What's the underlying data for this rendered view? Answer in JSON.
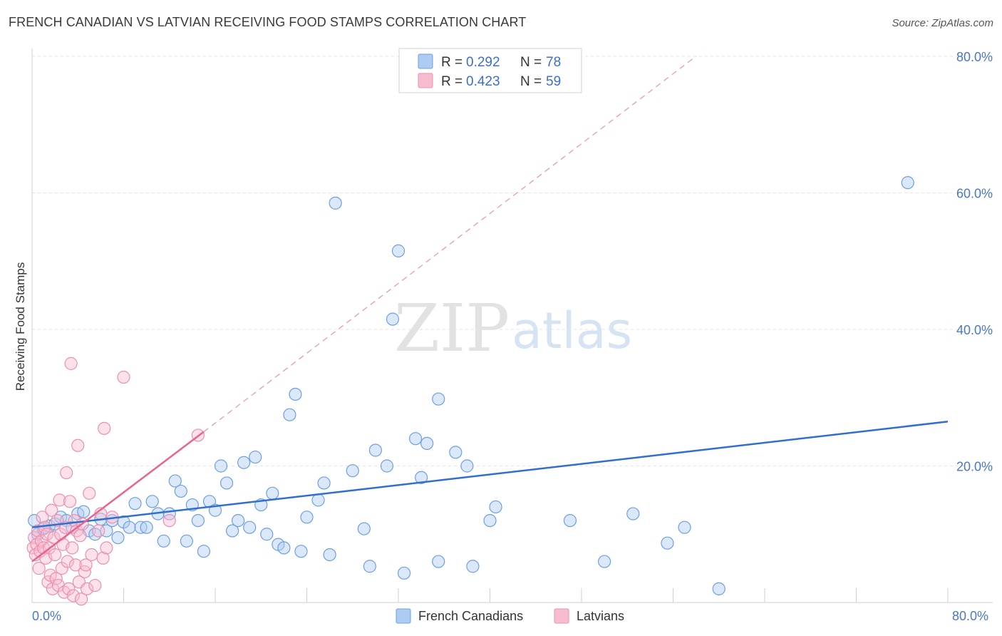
{
  "title": "FRENCH CANADIAN VS LATVIAN RECEIVING FOOD STAMPS CORRELATION CHART",
  "source": "Source: ZipAtlas.com",
  "watermark": {
    "zip": "ZIP",
    "atlas": "atlas"
  },
  "legend": {
    "r_label": "R =",
    "n_label": "N =",
    "entries": [
      {
        "r": "0.292",
        "n": "78"
      },
      {
        "r": "0.423",
        "n": "59"
      }
    ]
  },
  "colors": {
    "french_fill": "#aecbf2",
    "french_stroke": "#6f9fe0",
    "french_line": "#2f6fd0",
    "latvian_fill": "#f7bcd0",
    "latvian_stroke": "#ec8fb0",
    "latvian_line": "#e8648e",
    "tick_text": "#4a78c8",
    "grid": "#e3e3e3"
  },
  "chart_data": {
    "type": "scatter",
    "ylabel": "Receiving Food Stamps",
    "xlim": [
      0,
      80
    ],
    "ylim": [
      0,
      80
    ],
    "x_tick_labels": [
      "0.0%",
      "80.0%"
    ],
    "y_ticks": [
      20,
      40,
      60,
      80
    ],
    "y_tick_labels": [
      "20.0%",
      "40.0%",
      "60.0%",
      "80.0%"
    ],
    "series": [
      {
        "name": "French Canadians",
        "trend": {
          "x": [
            0,
            80
          ],
          "y": [
            11.0,
            26.5
          ]
        },
        "points": [
          [
            0.2,
            12.0
          ],
          [
            0.5,
            10.0
          ],
          [
            1.0,
            10.8
          ],
          [
            1.5,
            11.2
          ],
          [
            2.0,
            11.5
          ],
          [
            2.5,
            12.5
          ],
          [
            3.0,
            12.0
          ],
          [
            3.5,
            11.0
          ],
          [
            4.0,
            13.0
          ],
          [
            4.5,
            13.3
          ],
          [
            5.0,
            10.5
          ],
          [
            5.5,
            10.0
          ],
          [
            6.0,
            12.2
          ],
          [
            6.5,
            10.5
          ],
          [
            7.0,
            12.0
          ],
          [
            7.5,
            9.5
          ],
          [
            8.0,
            11.8
          ],
          [
            8.5,
            11.0
          ],
          [
            9.0,
            14.5
          ],
          [
            9.5,
            11.0
          ],
          [
            10.0,
            11.0
          ],
          [
            10.5,
            14.8
          ],
          [
            11.0,
            13.0
          ],
          [
            11.5,
            9.0
          ],
          [
            12.0,
            13.0
          ],
          [
            12.5,
            17.8
          ],
          [
            13.0,
            16.3
          ],
          [
            13.5,
            9.0
          ],
          [
            14.0,
            14.3
          ],
          [
            14.5,
            12.0
          ],
          [
            15.0,
            7.5
          ],
          [
            15.5,
            14.8
          ],
          [
            16.0,
            13.5
          ],
          [
            16.5,
            20.0
          ],
          [
            17.0,
            17.5
          ],
          [
            17.5,
            10.5
          ],
          [
            18.0,
            12.0
          ],
          [
            18.5,
            20.5
          ],
          [
            19.0,
            11.0
          ],
          [
            19.5,
            21.3
          ],
          [
            20.0,
            14.3
          ],
          [
            20.5,
            10.0
          ],
          [
            21.0,
            16.0
          ],
          [
            21.5,
            8.5
          ],
          [
            22.0,
            8.0
          ],
          [
            22.5,
            27.5
          ],
          [
            23.0,
            30.5
          ],
          [
            23.5,
            7.5
          ],
          [
            24.0,
            12.5
          ],
          [
            25.0,
            15.0
          ],
          [
            25.5,
            17.5
          ],
          [
            26.0,
            7.0
          ],
          [
            26.5,
            58.5
          ],
          [
            28.0,
            19.3
          ],
          [
            29.0,
            10.8
          ],
          [
            29.5,
            5.3
          ],
          [
            30.0,
            22.3
          ],
          [
            31.0,
            20.0
          ],
          [
            31.5,
            41.5
          ],
          [
            32.0,
            51.5
          ],
          [
            32.5,
            4.3
          ],
          [
            33.5,
            24.0
          ],
          [
            34.0,
            18.3
          ],
          [
            34.5,
            23.3
          ],
          [
            35.5,
            29.8
          ],
          [
            35.5,
            6.0
          ],
          [
            37.0,
            22.0
          ],
          [
            38.0,
            20.0
          ],
          [
            38.5,
            5.3
          ],
          [
            40.0,
            12.0
          ],
          [
            40.5,
            14.0
          ],
          [
            47.0,
            12.0
          ],
          [
            50.0,
            6.0
          ],
          [
            52.5,
            13.0
          ],
          [
            55.5,
            8.7
          ],
          [
            57.0,
            11.0
          ],
          [
            60.0,
            2.0
          ],
          [
            76.5,
            61.5
          ]
        ]
      },
      {
        "name": "Latvians",
        "trend": {
          "x": [
            0,
            15
          ],
          "y": [
            6.0,
            25.0
          ]
        },
        "trend_extension": {
          "x": [
            15,
            58
          ],
          "y": [
            25.0,
            80.0
          ]
        },
        "points": [
          [
            0.1,
            8.0
          ],
          [
            0.2,
            9.5
          ],
          [
            0.3,
            7.0
          ],
          [
            0.4,
            8.5
          ],
          [
            0.5,
            10.5
          ],
          [
            0.6,
            5.0
          ],
          [
            0.7,
            7.5
          ],
          [
            0.8,
            9.0
          ],
          [
            0.9,
            12.5
          ],
          [
            1.0,
            8.0
          ],
          [
            1.1,
            11.0
          ],
          [
            1.2,
            6.5
          ],
          [
            1.3,
            10.0
          ],
          [
            1.4,
            3.0
          ],
          [
            1.5,
            8.0
          ],
          [
            1.6,
            4.0
          ],
          [
            1.7,
            13.5
          ],
          [
            1.8,
            2.0
          ],
          [
            1.9,
            9.5
          ],
          [
            2.0,
            7.0
          ],
          [
            2.1,
            3.5
          ],
          [
            2.2,
            12.0
          ],
          [
            2.3,
            2.5
          ],
          [
            2.4,
            15.0
          ],
          [
            2.5,
            10.0
          ],
          [
            2.6,
            5.0
          ],
          [
            2.7,
            8.5
          ],
          [
            2.8,
            1.5
          ],
          [
            2.9,
            11.0
          ],
          [
            3.0,
            19.0
          ],
          [
            3.1,
            6.0
          ],
          [
            3.2,
            2.0
          ],
          [
            3.3,
            14.8
          ],
          [
            3.4,
            35.0
          ],
          [
            3.5,
            8.0
          ],
          [
            3.6,
            1.0
          ],
          [
            3.7,
            12.0
          ],
          [
            3.8,
            5.5
          ],
          [
            3.9,
            10.5
          ],
          [
            4.0,
            23.0
          ],
          [
            4.1,
            3.0
          ],
          [
            4.2,
            9.8
          ],
          [
            4.3,
            0.5
          ],
          [
            4.4,
            11.5
          ],
          [
            4.6,
            4.5
          ],
          [
            4.7,
            5.5
          ],
          [
            4.8,
            2.0
          ],
          [
            5.0,
            16.0
          ],
          [
            5.2,
            7.0
          ],
          [
            5.5,
            2.5
          ],
          [
            5.8,
            10.5
          ],
          [
            6.0,
            13.0
          ],
          [
            6.2,
            6.5
          ],
          [
            6.3,
            25.5
          ],
          [
            6.5,
            8.0
          ],
          [
            7.0,
            12.5
          ],
          [
            8.0,
            33.0
          ],
          [
            12.0,
            12.0
          ],
          [
            14.5,
            24.5
          ]
        ]
      }
    ]
  }
}
